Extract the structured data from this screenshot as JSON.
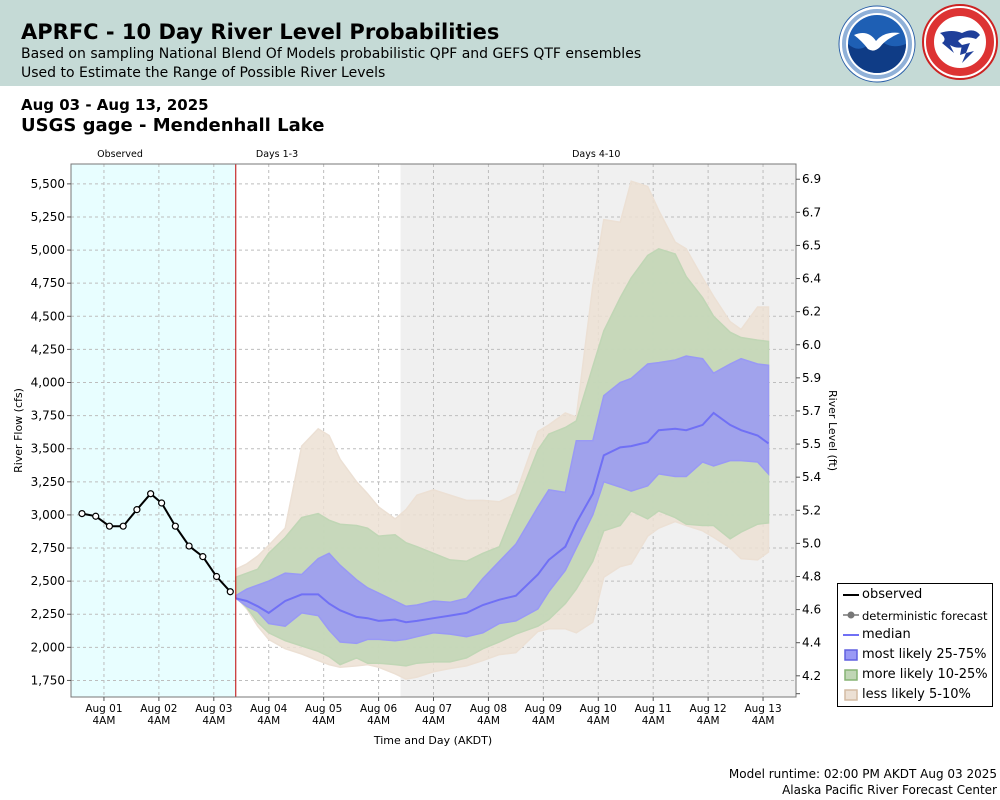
{
  "header": {
    "title": "APRFC - 10 Day River Level Probabilities",
    "subtitle_1": "Based on sampling National Blend Of Models probabilistic QPF and GEFS QTF ensembles",
    "subtitle_2": "Used to Estimate the Range of Possible River Levels",
    "logos": [
      "noaa-logo",
      "national-weather-service-logo"
    ]
  },
  "date_range": "Aug 03 - Aug 13, 2025",
  "gage_name": "USGS gage - Mendenhall Lake",
  "footer": {
    "runtime": "Model runtime: 02:00 PM AKDT Aug 03 2025",
    "center": "Alaska Pacific River Forecast Center"
  },
  "chart_data": {
    "type": "area",
    "xlabel": "Time and Day (AKDT)",
    "ylabel": "River Flow (cfs)",
    "ylabel_right": "River Level (ft)",
    "x_units": "days since Aug 01 04AM AKDT",
    "xlim": [
      -0.6,
      12.6
    ],
    "ylim": [
      1625,
      5650
    ],
    "yticks": [
      1750,
      2000,
      2250,
      2500,
      2750,
      3000,
      3250,
      3500,
      3750,
      4000,
      4250,
      4500,
      4750,
      5000,
      5250,
      5500
    ],
    "ytick_labels": [
      "1,750",
      "2,000",
      "2,250",
      "2,500",
      "2,750",
      "3,000",
      "3,250",
      "3,500",
      "3,750",
      "4,000",
      "4,250",
      "4,500",
      "4,750",
      "5,000",
      "5,250",
      "5,500"
    ],
    "right_ticks": [
      {
        "flow": 1650,
        "label": ""
      },
      {
        "flow": 1785,
        "label": "4.2"
      },
      {
        "flow": 2035,
        "label": "4.4"
      },
      {
        "flow": 2285,
        "label": "4.6"
      },
      {
        "flow": 2535,
        "label": "4.8"
      },
      {
        "flow": 2785,
        "label": "5.0"
      },
      {
        "flow": 3035,
        "label": "5.2"
      },
      {
        "flow": 3285,
        "label": "5.4"
      },
      {
        "flow": 3535,
        "label": "5.5"
      },
      {
        "flow": 3785,
        "label": "5.7"
      },
      {
        "flow": 4035,
        "label": "5.9"
      },
      {
        "flow": 4285,
        "label": "6.0"
      },
      {
        "flow": 4535,
        "label": "6.2"
      },
      {
        "flow": 4785,
        "label": "6.4"
      },
      {
        "flow": 5035,
        "label": "6.5"
      },
      {
        "flow": 5285,
        "label": "6.7"
      },
      {
        "flow": 5535,
        "label": "6.9"
      }
    ],
    "xticks": [
      {
        "x": 0,
        "day": "Aug 01",
        "time": "4AM"
      },
      {
        "x": 1,
        "day": "Aug 02",
        "time": "4AM"
      },
      {
        "x": 2,
        "day": "Aug 03",
        "time": "4AM"
      },
      {
        "x": 3,
        "day": "Aug 04",
        "time": "4AM"
      },
      {
        "x": 4,
        "day": "Aug 05",
        "time": "4AM"
      },
      {
        "x": 5,
        "day": "Aug 06",
        "time": "4AM"
      },
      {
        "x": 6,
        "day": "Aug 07",
        "time": "4AM"
      },
      {
        "x": 7,
        "day": "Aug 08",
        "time": "4AM"
      },
      {
        "x": 8,
        "day": "Aug 09",
        "time": "4AM"
      },
      {
        "x": 9,
        "day": "Aug 10",
        "time": "4AM"
      },
      {
        "x": 10,
        "day": "Aug 11",
        "time": "4AM"
      },
      {
        "x": 11,
        "day": "Aug 12",
        "time": "4AM"
      },
      {
        "x": 12,
        "day": "Aug 13",
        "time": "4AM"
      }
    ],
    "regions": [
      {
        "label": "Observed",
        "x0": -0.6,
        "x1": 2.4,
        "color": "#e8feff"
      },
      {
        "label": "Days 1-3",
        "x0": 2.4,
        "x1": 5.4,
        "color": "#ffffff"
      },
      {
        "label": "Days 4-10",
        "x0": 5.4,
        "x1": 12.6,
        "color": "#f0f0f0"
      }
    ],
    "forecast_start_x": 2.4,
    "observed": {
      "x": [
        -0.4,
        -0.15,
        0.1,
        0.35,
        0.6,
        0.85,
        1.05,
        1.3,
        1.55,
        1.8,
        2.05,
        2.3
      ],
      "y": [
        3010,
        2990,
        2915,
        2915,
        3040,
        3160,
        3090,
        2915,
        2765,
        2685,
        2535,
        2420
      ]
    },
    "forecast_x": [
      2.4,
      2.6,
      2.8,
      3.0,
      3.3,
      3.6,
      3.9,
      4.1,
      4.3,
      4.6,
      4.8,
      5.0,
      5.3,
      5.5,
      5.7,
      6.0,
      6.3,
      6.6,
      6.9,
      7.2,
      7.5,
      7.9,
      8.1,
      8.4,
      8.6,
      8.9,
      9.1,
      9.4,
      9.6,
      9.9,
      10.1,
      10.4,
      10.6,
      10.9,
      11.1,
      11.4,
      11.6,
      11.9,
      12.1
    ],
    "bands": [
      {
        "name": "less likely 5-10%",
        "color": "#ece0d4",
        "upper": [
          2590,
          2630,
          2690,
          2770,
          2900,
          3520,
          3650,
          3600,
          3420,
          3250,
          3160,
          3060,
          2970,
          3040,
          3150,
          3190,
          3150,
          3110,
          3110,
          3100,
          3160,
          3630,
          3680,
          3770,
          3740,
          4730,
          5230,
          5210,
          5520,
          5480,
          5300,
          5060,
          5010,
          4790,
          4650,
          4460,
          4400,
          4570,
          4570
        ],
        "lower": [
          2380,
          2290,
          2160,
          2060,
          1990,
          1950,
          1900,
          1870,
          1850,
          1860,
          1870,
          1850,
          1800,
          1760,
          1775,
          1815,
          1840,
          1860,
          1900,
          1945,
          1960,
          2120,
          2140,
          2140,
          2110,
          2190,
          2530,
          2610,
          2630,
          2840,
          2900,
          2950,
          2920,
          2880,
          2830,
          2750,
          2670,
          2660,
          2720
        ]
      },
      {
        "name": "more likely 10-25%",
        "color": "#c0d6b5",
        "upper": [
          2530,
          2560,
          2590,
          2710,
          2830,
          2980,
          3010,
          2960,
          2930,
          2920,
          2900,
          2840,
          2850,
          2790,
          2760,
          2710,
          2660,
          2650,
          2710,
          2760,
          3070,
          3490,
          3610,
          3660,
          3710,
          4120,
          4390,
          4640,
          4790,
          4960,
          5010,
          4970,
          4800,
          4640,
          4500,
          4380,
          4340,
          4320,
          4310
        ],
        "lower": [
          2380,
          2300,
          2190,
          2110,
          2050,
          2010,
          1970,
          1930,
          1870,
          1920,
          1880,
          1880,
          1870,
          1860,
          1880,
          1890,
          1890,
          1920,
          1990,
          2040,
          2100,
          2160,
          2210,
          2330,
          2440,
          2650,
          2880,
          2920,
          3030,
          2970,
          3030,
          2980,
          2930,
          2920,
          2920,
          2820,
          2870,
          2930,
          2940
        ]
      },
      {
        "name": "most likely 25-75%",
        "color": "#9999f5",
        "upper": [
          2390,
          2440,
          2470,
          2500,
          2560,
          2550,
          2670,
          2710,
          2620,
          2510,
          2450,
          2410,
          2350,
          2310,
          2320,
          2350,
          2340,
          2370,
          2520,
          2650,
          2780,
          3060,
          3190,
          3170,
          3560,
          3560,
          3900,
          4000,
          4030,
          4140,
          4150,
          4170,
          4200,
          4180,
          4070,
          4140,
          4180,
          4140,
          4130
        ],
        "lower": [
          2370,
          2310,
          2270,
          2180,
          2160,
          2260,
          2240,
          2130,
          2040,
          2030,
          2060,
          2060,
          2050,
          2060,
          2080,
          2110,
          2100,
          2080,
          2110,
          2180,
          2200,
          2290,
          2420,
          2580,
          2750,
          3000,
          3250,
          3210,
          3180,
          3220,
          3310,
          3290,
          3290,
          3400,
          3370,
          3410,
          3410,
          3400,
          3310
        ]
      }
    ],
    "median": {
      "name": "median",
      "color": "#7070f5",
      "y": [
        2370,
        2350,
        2310,
        2260,
        2350,
        2400,
        2400,
        2330,
        2280,
        2230,
        2220,
        2200,
        2210,
        2190,
        2200,
        2220,
        2240,
        2260,
        2320,
        2360,
        2390,
        2550,
        2660,
        2760,
        2940,
        3160,
        3450,
        3510,
        3520,
        3550,
        3640,
        3650,
        3640,
        3680,
        3770,
        3680,
        3640,
        3600,
        3540
      ]
    },
    "legend": {
      "placement": "bottom-right",
      "entries": [
        {
          "label": "observed",
          "kind": "line",
          "color": "#000000"
        },
        {
          "label": "deterministic forecast",
          "kind": "line-point",
          "color": "#777777"
        },
        {
          "label": "median",
          "kind": "line",
          "color": "#7070f5"
        },
        {
          "label": "most likely 25-75%",
          "kind": "box",
          "color": "#9999f5",
          "edge": "#6060e0"
        },
        {
          "label": "more likely 10-25%",
          "kind": "box",
          "color": "#c0d6b5",
          "edge": "#86b374"
        },
        {
          "label": "less likely 5-10%",
          "kind": "box",
          "color": "#ece0d4",
          "edge": "#d4bca4"
        }
      ]
    },
    "grid": true
  }
}
